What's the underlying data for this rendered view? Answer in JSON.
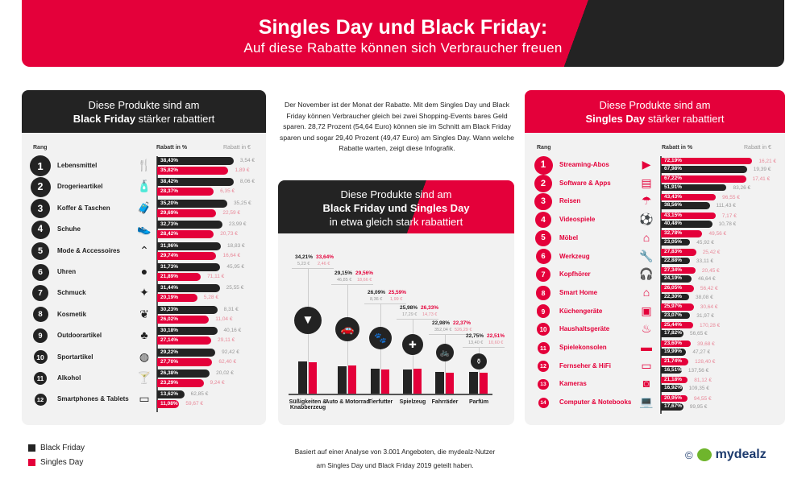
{
  "header": {
    "title": "Singles Day und Black Friday:",
    "subtitle": "Auf diese Rabatte können sich Verbraucher freuen"
  },
  "colors": {
    "black_friday": "#232323",
    "singles_day": "#e4003a"
  },
  "intro": "Der November ist der Monat der Rabatte. Mit dem Singles Day und Black Friday können Verbraucher gleich bei zwei Shopping-Events bares Geld sparen. 28,72 Prozent (54,64 Euro) können sie im Schnitt am Black Friday sparen und sogar 29,40 Prozent (49,47 Euro) am Singles Day. Wann welche Rabatte warten, zeigt diese Infografik.",
  "left": {
    "title_1": "Diese Produkte sind am",
    "title_bold": "Black Friday",
    "title_2": "stärker rabattiert",
    "col_rank": "Rang",
    "col_pct": "Rabatt in %",
    "col_eur": "Rabatt in €"
  },
  "right": {
    "title_1": "Diese Produkte sind am",
    "title_bold": "Singles Day",
    "title_2": "stärker rabattiert",
    "col_rank": "Rang",
    "col_pct": "Rabatt in %",
    "col_eur": "Rabatt in €"
  },
  "middle": {
    "title_1": "Diese Produkte sind am",
    "title_bold": "Black Friday und Singles Day",
    "title_2": "in etwa gleich stark rabattiert"
  },
  "legend": {
    "black_friday": "Black Friday",
    "singles_day": "Singles Day"
  },
  "footnote": {
    "line1": "Basiert auf einer Analyse von 3.001 Angeboten, die mydealz-Nutzer",
    "line2": "am Singles Day und Black Friday 2019 geteilt haben."
  },
  "logo": {
    "copyright": "©",
    "brand": "mydealz"
  },
  "chart_data": [
    {
      "type": "bar",
      "title": "Diese Produkte sind am Black Friday stärker rabattiert",
      "orientation": "horizontal",
      "xlabel": "Rabatt in %",
      "categories": [
        "Lebensmittel",
        "Drogerieartikel",
        "Koffer & Taschen",
        "Schuhe",
        "Mode & Accessoires",
        "Uhren",
        "Schmuck",
        "Kosmetik",
        "Outdoorartikel",
        "Sportartikel",
        "Alkohol",
        "Smartphones & Tablets"
      ],
      "icons": [
        "cutlery-icon",
        "soap-bottle-icon",
        "suitcase-icon",
        "shoe-icon",
        "hanger-icon",
        "clock-icon",
        "sparkle-icon",
        "lotus-icon",
        "tree-icon",
        "basketball-icon",
        "cocktail-icon",
        "devices-icon"
      ],
      "series": [
        {
          "name": "Black Friday",
          "pct": [
            "38,43%",
            "38,42%",
            "35,20%",
            "32,73%",
            "31,96%",
            "31,73%",
            "31,44%",
            "30,23%",
            "30,18%",
            "29,22%",
            "26,38%",
            "13,62%"
          ],
          "values": [
            38.43,
            38.42,
            35.2,
            32.73,
            31.96,
            31.73,
            31.44,
            30.23,
            30.18,
            29.22,
            26.38,
            13.62
          ],
          "eur": [
            "3,54 €",
            "8,06 €",
            "35,25 €",
            "23,99 €",
            "18,83 €",
            "45,95 €",
            "25,55 €",
            "8,31 €",
            "40,16 €",
            "92,42 €",
            "20,02 €",
            "62,85 €"
          ]
        },
        {
          "name": "Singles Day",
          "pct": [
            "35,82%",
            "28,37%",
            "29,69%",
            "28,42%",
            "29,74%",
            "21,89%",
            "20,19%",
            "26,02%",
            "27,14%",
            "27,70%",
            "23,29%",
            "11,08%"
          ],
          "values": [
            35.82,
            28.37,
            29.69,
            28.42,
            29.74,
            21.89,
            20.19,
            26.02,
            27.14,
            27.7,
            23.29,
            11.08
          ],
          "eur": [
            "1,89 €",
            "6,35 €",
            "22,59 €",
            "20,73 €",
            "16,64 €",
            "71,11 €",
            "5,28 €",
            "11,04 €",
            "29,11 €",
            "62,40 €",
            "9,24 €",
            "59,67 €"
          ]
        }
      ]
    },
    {
      "type": "bar",
      "title": "Diese Produkte sind am Singles Day stärker rabattiert",
      "orientation": "horizontal",
      "xlabel": "Rabatt in %",
      "categories": [
        "Streaming-Abos",
        "Software & Apps",
        "Reisen",
        "Videospiele",
        "Möbel",
        "Werkzeug",
        "Kopfhörer",
        "Smart Home",
        "Küchengeräte",
        "Haushaltsgeräte",
        "Spielekonsolen",
        "Fernseher & HiFi",
        "Kameras",
        "Computer & Notebooks"
      ],
      "icons": [
        "play-screen-icon",
        "software-icon",
        "beach-umbrella-icon",
        "football-icon",
        "furniture-icon",
        "wrench-icon",
        "headphones-icon",
        "house-icon",
        "kitchen-appliance-icon",
        "grill-icon",
        "gamepad-icon",
        "tv-icon",
        "camera-icon",
        "laptop-icon"
      ],
      "series": [
        {
          "name": "Singles Day",
          "pct": [
            "72,19%",
            "67,22%",
            "43,43%",
            "43,15%",
            "32,78%",
            "27,83%",
            "27,34%",
            "26,05%",
            "25,97%",
            "25,44%",
            "23,60%",
            "21,74%",
            "21,18%",
            "20,95%"
          ],
          "values": [
            72.19,
            67.22,
            43.43,
            43.15,
            32.78,
            27.83,
            27.34,
            26.05,
            25.97,
            25.44,
            23.6,
            21.74,
            21.18,
            20.95
          ],
          "eur": [
            "16,21 €",
            "17,41 €",
            "96,55 €",
            "7,17 €",
            "49,56 €",
            "25,42 €",
            "20,45 €",
            "56,42 €",
            "30,64 €",
            "170,28 €",
            "39,68 €",
            "128,40 €",
            "81,12 €",
            "94,55 €"
          ]
        },
        {
          "name": "Black Friday",
          "pct": [
            "67,98%",
            "51,91%",
            "38,56%",
            "40,48%",
            "23,05%",
            "22,88%",
            "24,19%",
            "22,30%",
            "23,07%",
            "17,82%",
            "19,99%",
            "16,51%",
            "16,92%",
            "17,67%"
          ],
          "values": [
            67.98,
            51.91,
            38.56,
            40.48,
            23.05,
            22.88,
            24.19,
            22.3,
            23.07,
            17.82,
            19.99,
            16.51,
            16.92,
            17.67
          ],
          "eur": [
            "19,39 €",
            "83,26 €",
            "111,43 €",
            "10,78 €",
            "45,92 €",
            "33,11 €",
            "46,64 €",
            "38,08 €",
            "31,97 €",
            "56,65 €",
            "47,27 €",
            "137,56 €",
            "109,35 €",
            "99,95 €"
          ]
        }
      ]
    },
    {
      "type": "bar",
      "title": "Diese Produkte sind am Black Friday und Singles Day in etwa gleich stark rabattiert",
      "orientation": "vertical",
      "categories": [
        "Süßigkeiten & Knabberzeug",
        "Auto & Motorrad",
        "Tierfutter",
        "Spielzeug",
        "Fahrräder",
        "Parfüm"
      ],
      "icons": [
        "pizza-slice-icon",
        "car-icon",
        "paw-icon",
        "puzzle-icon",
        "bicycle-icon",
        "perfume-icon"
      ],
      "series": [
        {
          "name": "Black Friday",
          "pct": [
            "34,21%",
            "29,15%",
            "26,09%",
            "25,98%",
            "22,98%",
            "22,75%"
          ],
          "values": [
            34.21,
            29.15,
            26.09,
            25.98,
            22.98,
            22.75
          ],
          "eur": [
            "5,23 €",
            "46,85 €",
            "8,36 €",
            "17,29 €",
            "352,04 €",
            "13,40 €"
          ]
        },
        {
          "name": "Singles Day",
          "pct": [
            "33,64%",
            "29,56%",
            "25,59%",
            "26,33%",
            "22,37%",
            "22,51%"
          ],
          "values": [
            33.64,
            29.56,
            25.59,
            26.33,
            22.37,
            22.51
          ],
          "eur": [
            "2,46 €",
            "18,66 €",
            "1,99 €",
            "14,73 €",
            "526,29 €",
            "10,60 €"
          ]
        }
      ]
    }
  ]
}
